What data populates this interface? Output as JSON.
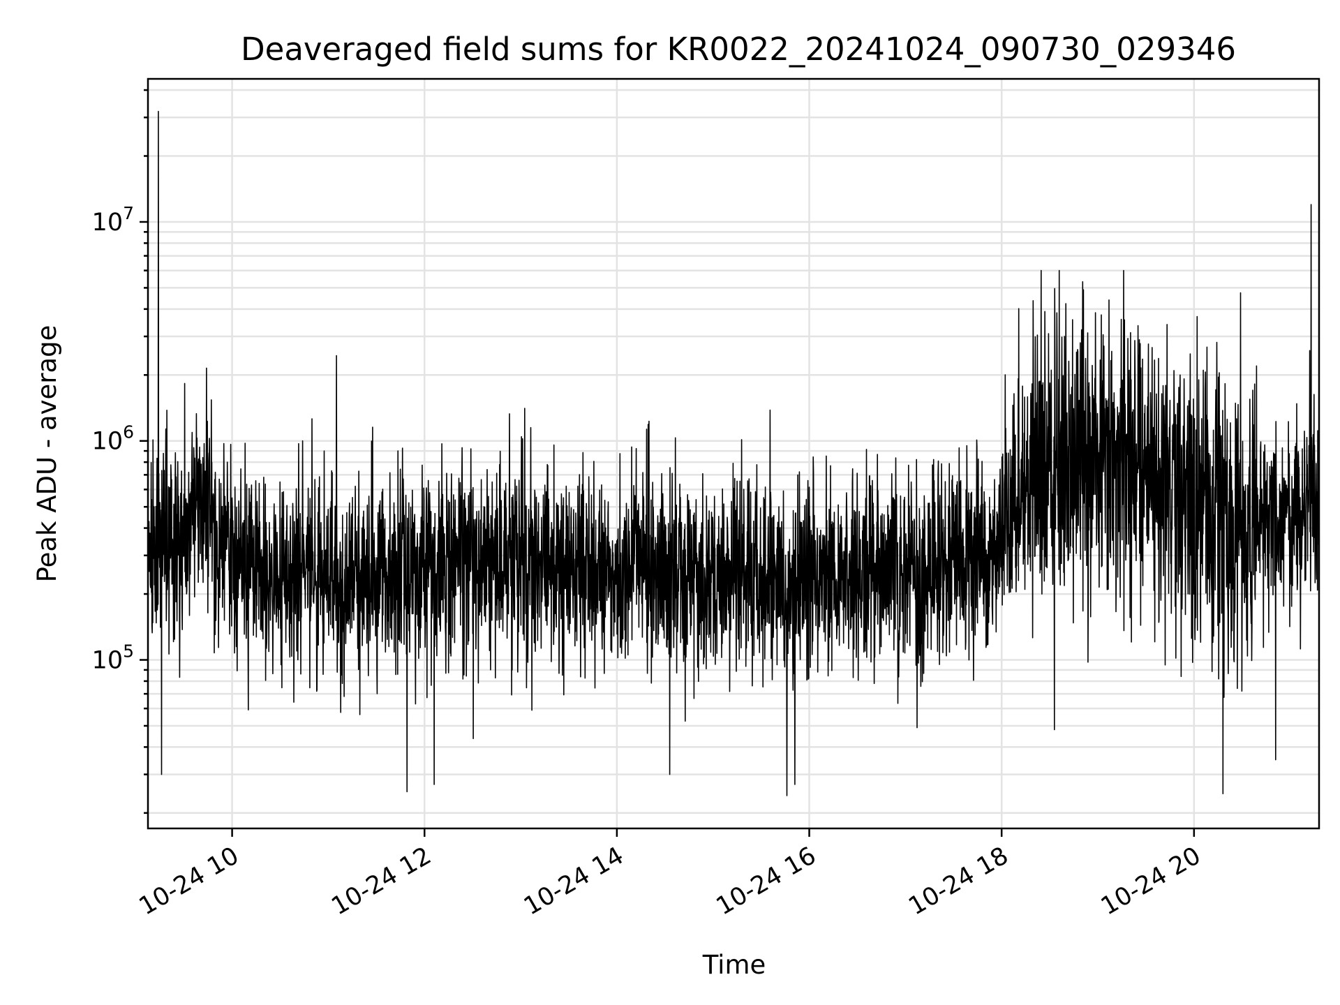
{
  "chart_data": {
    "type": "line",
    "title": "Deaveraged field sums for KR0022_20241024_090730_029346",
    "xlabel": "Time",
    "ylabel": "Peak ADU - average",
    "y_scale": "log",
    "x_range": [
      "2024-10-24T09:07:30",
      "2024-10-24T21:18:00"
    ],
    "ylim": [
      17000,
      45000000
    ],
    "x_ticks": [
      {
        "time": "2024-10-24T10:00:00",
        "label": "10-24 10"
      },
      {
        "time": "2024-10-24T12:00:00",
        "label": "10-24 12"
      },
      {
        "time": "2024-10-24T14:00:00",
        "label": "10-24 14"
      },
      {
        "time": "2024-10-24T16:00:00",
        "label": "10-24 16"
      },
      {
        "time": "2024-10-24T18:00:00",
        "label": "10-24 18"
      },
      {
        "time": "2024-10-24T20:00:00",
        "label": "10-24 20"
      }
    ],
    "y_ticks": [
      {
        "value": 100000,
        "base": "10",
        "exp": "5"
      },
      {
        "value": 1000000,
        "base": "10",
        "exp": "6"
      },
      {
        "value": 10000000,
        "base": "10",
        "exp": "7"
      }
    ],
    "grid": "both, major and minor",
    "line_color": "#000000",
    "baseline_profile": [
      [
        "2024-10-24T09:07:30",
        300000
      ],
      [
        "2024-10-24T09:35:00",
        420000
      ],
      [
        "2024-10-24T09:40:00",
        600000
      ],
      [
        "2024-10-24T10:00:00",
        280000
      ],
      [
        "2024-10-24T11:00:00",
        230000
      ],
      [
        "2024-10-24T12:00:00",
        260000
      ],
      [
        "2024-10-24T13:00:00",
        280000
      ],
      [
        "2024-10-24T14:00:00",
        260000
      ],
      [
        "2024-10-24T15:00:00",
        240000
      ],
      [
        "2024-10-24T16:00:00",
        240000
      ],
      [
        "2024-10-24T17:00:00",
        260000
      ],
      [
        "2024-10-24T17:50:00",
        300000
      ],
      [
        "2024-10-24T18:10:00",
        520000
      ],
      [
        "2024-10-24T18:40:00",
        900000
      ],
      [
        "2024-10-24T19:00:00",
        950000
      ],
      [
        "2024-10-24T19:30:00",
        700000
      ],
      [
        "2024-10-24T20:00:00",
        500000
      ],
      [
        "2024-10-24T20:30:00",
        380000
      ],
      [
        "2024-10-24T21:00:00",
        450000
      ],
      [
        "2024-10-24T21:18:00",
        520000
      ]
    ],
    "peaks": [
      [
        "2024-10-24T09:14:00",
        32000000
      ],
      [
        "2024-10-24T09:44:00",
        2150000
      ],
      [
        "2024-10-24T09:57:00",
        800000
      ],
      [
        "2024-10-24T10:44:00",
        1000000
      ],
      [
        "2024-10-24T11:05:00",
        2450000
      ],
      [
        "2024-10-24T12:29:00",
        920000
      ],
      [
        "2024-10-24T12:53:00",
        1330000
      ],
      [
        "2024-10-24T14:20:00",
        1230000
      ],
      [
        "2024-10-24T18:27:00",
        3900000
      ],
      [
        "2024-10-24T18:51:00",
        4900000
      ],
      [
        "2024-10-24T19:07:00",
        4400000
      ],
      [
        "2024-10-24T20:02:00",
        3700000
      ],
      [
        "2024-10-24T20:39:00",
        2200000
      ],
      [
        "2024-10-24T21:13:00",
        12000000
      ]
    ],
    "troughs": [
      [
        "2024-10-24T09:16:00",
        30000
      ],
      [
        "2024-10-24T11:49:00",
        25000
      ],
      [
        "2024-10-24T12:06:00",
        27000
      ],
      [
        "2024-10-24T14:33:00",
        30000
      ],
      [
        "2024-10-24T15:46:00",
        24000
      ],
      [
        "2024-10-24T15:51:00",
        27000
      ],
      [
        "2024-10-24T18:33:00",
        48000
      ],
      [
        "2024-10-24T20:18:00",
        24500
      ],
      [
        "2024-10-24T20:51:00",
        35000
      ]
    ]
  }
}
